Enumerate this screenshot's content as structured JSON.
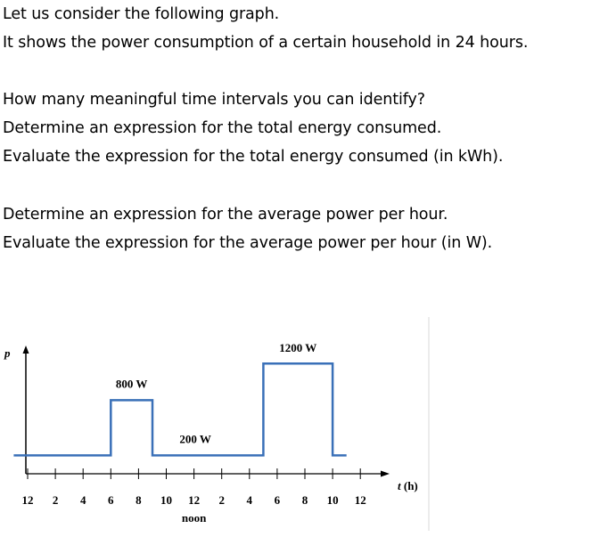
{
  "paragraphs": {
    "p1": [
      "Let us consider the following graph.",
      "It shows the power consumption of a certain household in 24 hours."
    ],
    "p2": [
      "How many meaningful time intervals you can identify?",
      "Determine an expression for the total energy consumed.",
      "Evaluate the expression for the total energy consumed (in kWh)."
    ],
    "p3": [
      "Determine an expression for the average power per hour.",
      "Evaluate the expression for the average power per hour (in W)."
    ]
  },
  "chart_data": {
    "type": "line",
    "ylabel": "p",
    "xlabel": "t (h)",
    "tick_labels": [
      "12",
      "2",
      "4",
      "6",
      "8",
      "10",
      "12",
      "2",
      "4",
      "6",
      "8",
      "10",
      "12"
    ],
    "noon_label": "noon",
    "annotations": [
      "800 W",
      "200 W",
      "1200 W"
    ],
    "series": [
      {
        "x": [
          -1,
          6,
          6,
          9,
          9,
          17,
          17,
          22,
          22,
          23
        ],
        "y": [
          200,
          200,
          800,
          800,
          200,
          200,
          1200,
          1200,
          200,
          200
        ]
      }
    ]
  }
}
